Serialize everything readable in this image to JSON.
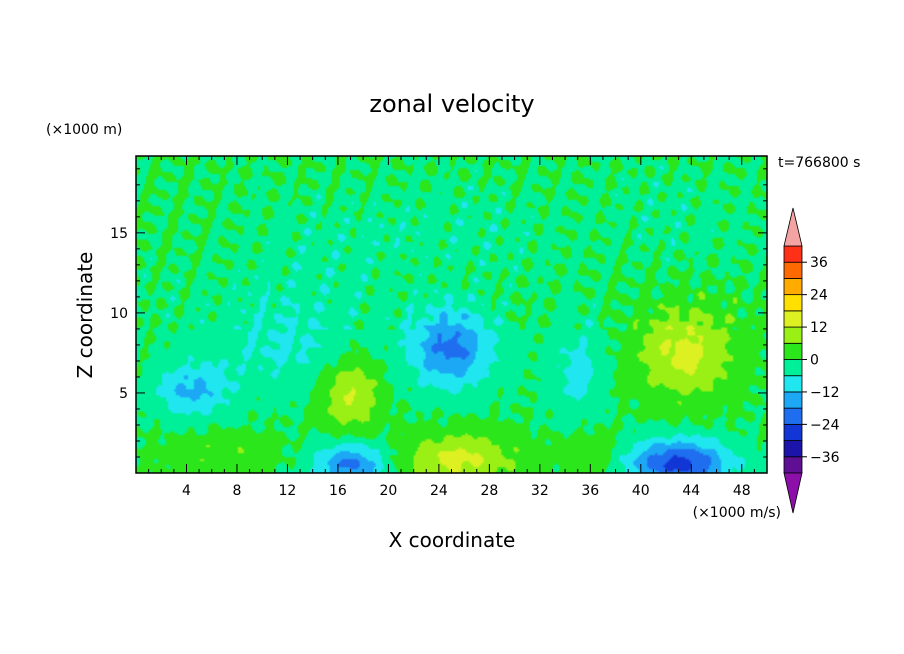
{
  "chart_data": {
    "type": "heatmap",
    "title": "zonal velocity",
    "xlabel": "X coordinate",
    "ylabel": "Z coordinate",
    "y_unit": "(×1000 m)",
    "x_unit": "(×1000 m/s)",
    "time_label": "t=766800 s",
    "xlim": [
      0,
      50
    ],
    "ylim": [
      0,
      19.8
    ],
    "x_ticks": [
      4,
      8,
      12,
      16,
      20,
      24,
      28,
      32,
      36,
      40,
      44,
      48
    ],
    "y_ticks": [
      5,
      10,
      15
    ],
    "colorbar": {
      "tick_labels": [
        "36",
        "24",
        "12",
        "0",
        "−12",
        "−24",
        "−36"
      ],
      "tick_values": [
        36,
        24,
        12,
        0,
        -12,
        -24,
        -36
      ],
      "min": -42,
      "max": 42,
      "step": 6,
      "colors": [
        "#5e0f94",
        "#1c13a8",
        "#1236d6",
        "#1f6ef0",
        "#1ca8f5",
        "#20e6f0",
        "#00f09a",
        "#2ce61c",
        "#9af015",
        "#dcf022",
        "#ffe000",
        "#ffab00",
        "#ff6a00",
        "#ff3018"
      ],
      "under_color": "#8b0fa8",
      "over_color": "#f4a3a3"
    },
    "features": [
      {
        "x": 4.5,
        "z": 5.2,
        "sx": 3.0,
        "sz": 1.6,
        "value": -13
      },
      {
        "x": 17.0,
        "z": 0.5,
        "sx": 2.8,
        "sz": 1.4,
        "value": -20
      },
      {
        "x": 25.0,
        "z": 7.8,
        "sx": 3.2,
        "sz": 2.4,
        "value": -20
      },
      {
        "x": 43.0,
        "z": 0.6,
        "sx": 4.0,
        "sz": 1.5,
        "value": -26
      },
      {
        "x": 35.0,
        "z": 6.5,
        "sx": 2.2,
        "sz": 3.0,
        "value": -8
      },
      {
        "x": 12.0,
        "z": 7.5,
        "sx": 6.0,
        "sz": 2.5,
        "value": -6
      },
      {
        "x": 17.0,
        "z": 5.0,
        "sx": 2.2,
        "sz": 2.4,
        "value": 13
      },
      {
        "x": 25.5,
        "z": 0.8,
        "sx": 4.5,
        "sz": 1.6,
        "value": 14
      },
      {
        "x": 43.5,
        "z": 7.5,
        "sx": 3.8,
        "sz": 2.8,
        "value": 14
      },
      {
        "x": 36.0,
        "z": 1.2,
        "sx": 2.2,
        "sz": 1.4,
        "value": 6
      },
      {
        "x": 6.5,
        "z": 1.2,
        "sx": 4.5,
        "sz": 1.2,
        "value": 5
      },
      {
        "x": 22.0,
        "z": 15.0,
        "sx": 12.0,
        "sz": 3.0,
        "value": -3
      },
      {
        "x": 12.0,
        "z": 11.0,
        "sx": 8.0,
        "sz": 3.0,
        "value": -3
      },
      {
        "x": 44.0,
        "z": 16.0,
        "sx": 8.0,
        "sz": 3.0,
        "value": -2
      }
    ]
  }
}
